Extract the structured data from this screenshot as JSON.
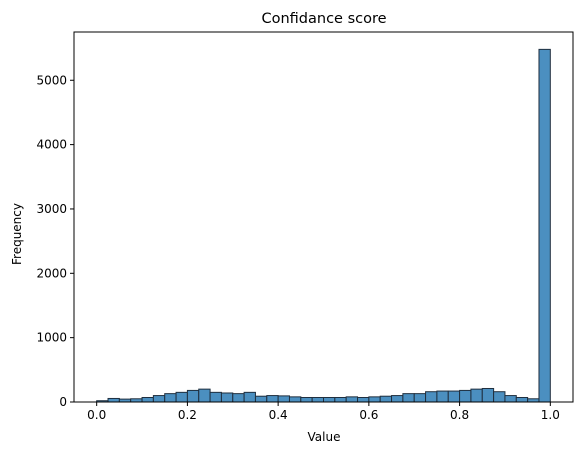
{
  "chart_data": {
    "type": "bar",
    "title": "Confidance score",
    "xlabel": "Value",
    "ylabel": "Frequency",
    "bin_width": 0.025,
    "bin_starts": [
      0.0,
      0.025,
      0.05,
      0.075,
      0.1,
      0.125,
      0.15,
      0.175,
      0.2,
      0.225,
      0.25,
      0.275,
      0.3,
      0.325,
      0.35,
      0.375,
      0.4,
      0.425,
      0.45,
      0.475,
      0.5,
      0.525,
      0.55,
      0.575,
      0.6,
      0.625,
      0.65,
      0.675,
      0.7,
      0.725,
      0.75,
      0.775,
      0.8,
      0.825,
      0.85,
      0.875,
      0.9,
      0.925,
      0.95,
      0.975
    ],
    "values": [
      20,
      55,
      45,
      50,
      70,
      100,
      130,
      150,
      180,
      200,
      150,
      140,
      130,
      150,
      90,
      100,
      95,
      80,
      70,
      70,
      70,
      70,
      80,
      70,
      80,
      90,
      100,
      130,
      130,
      160,
      170,
      170,
      180,
      200,
      210,
      160,
      100,
      70,
      50,
      5480
    ],
    "xlim": [
      -0.05,
      1.05
    ],
    "ylim": [
      0,
      5750
    ],
    "xticks": [
      0.0,
      0.2,
      0.4,
      0.6,
      0.8,
      1.0
    ],
    "xtick_labels": [
      "0.0",
      "0.2",
      "0.4",
      "0.6",
      "0.8",
      "1.0"
    ],
    "yticks": [
      0,
      1000,
      2000,
      3000,
      4000,
      5000
    ],
    "ytick_labels": [
      "0",
      "1000",
      "2000",
      "3000",
      "4000",
      "5000"
    ],
    "grid": false,
    "colors": {
      "bar_fill": "#4b8fc0",
      "bar_edge": "#1f2f3f"
    }
  }
}
